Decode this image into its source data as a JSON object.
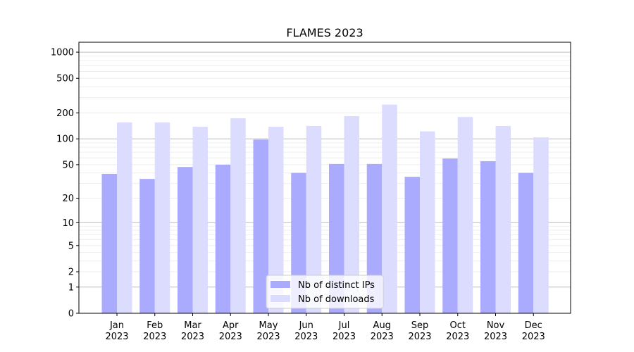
{
  "chart_data": {
    "type": "bar",
    "title": "FLAMES 2023",
    "xlabel": "",
    "ylabel": "",
    "yscale": "symlog",
    "ylim": [
      0,
      1300
    ],
    "yticks": [
      0,
      1,
      2,
      5,
      10,
      20,
      50,
      100,
      200,
      500,
      1000
    ],
    "grid": true,
    "legend_position": "bottom-center",
    "categories": [
      [
        "Jan",
        "2023"
      ],
      [
        "Feb",
        "2023"
      ],
      [
        "Mar",
        "2023"
      ],
      [
        "Apr",
        "2023"
      ],
      [
        "May",
        "2023"
      ],
      [
        "Jun",
        "2023"
      ],
      [
        "Jul",
        "2023"
      ],
      [
        "Aug",
        "2023"
      ],
      [
        "Sep",
        "2023"
      ],
      [
        "Oct",
        "2023"
      ],
      [
        "Nov",
        "2023"
      ],
      [
        "Dec",
        "2023"
      ]
    ],
    "series": [
      {
        "name": "Nb of distinct IPs",
        "color": "#aaaaff",
        "values": [
          39,
          34,
          47,
          50,
          98,
          40,
          51,
          51,
          36,
          59,
          55,
          40
        ]
      },
      {
        "name": "Nb of downloads",
        "color": "#dcdcff",
        "values": [
          155,
          155,
          138,
          173,
          138,
          141,
          183,
          249,
          122,
          179,
          141,
          104
        ]
      }
    ]
  }
}
